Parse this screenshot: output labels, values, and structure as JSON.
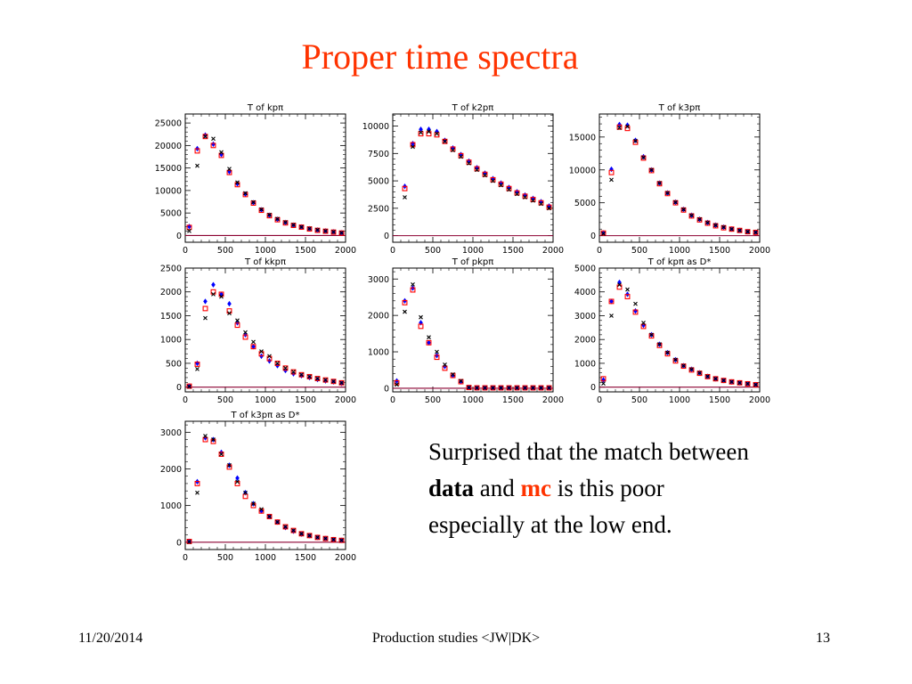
{
  "slide": {
    "title": "Proper time spectra",
    "remark": {
      "part1": "Surprised that the match between",
      "data_word": "data",
      "and_word": "and",
      "mc_word": "mc",
      "part2": "is this poor",
      "part3": "especially at the low end."
    },
    "footer": {
      "date": "11/20/2014",
      "center": "Production studies <JW|DK>",
      "page": "13"
    }
  },
  "colors": {
    "title": "#ff3300",
    "mc_word": "#ff3300",
    "series_blue": "#0000ff",
    "series_red": "#ff0000",
    "series_black": "#000000",
    "baseline": "#8b0030"
  },
  "chart_data": [
    {
      "type": "scatter",
      "title": "T of kpπ",
      "xlim": [
        0,
        2000
      ],
      "ylim": [
        -1500,
        27000
      ],
      "xticks": [
        0,
        500,
        1000,
        1500,
        2000
      ],
      "yticks": [
        0,
        5000,
        10000,
        15000,
        20000,
        25000
      ],
      "x": [
        50,
        150,
        250,
        350,
        450,
        550,
        650,
        750,
        850,
        950,
        1050,
        1150,
        1250,
        1350,
        1450,
        1550,
        1650,
        1750,
        1850,
        1950
      ],
      "series": [
        {
          "marker": "diamond",
          "color": "#0000ff",
          "values": [
            2000,
            19300,
            22300,
            20300,
            18000,
            14200,
            11500,
            9200,
            7300,
            5700,
            4500,
            3600,
            2900,
            2300,
            1900,
            1500,
            1200,
            1000,
            800,
            600
          ]
        },
        {
          "marker": "square",
          "color": "#ff0000",
          "values": [
            1800,
            18800,
            22000,
            20000,
            17800,
            14000,
            11300,
            9100,
            7200,
            5600,
            4400,
            3500,
            2800,
            2250,
            1850,
            1450,
            1150,
            950,
            750,
            550
          ]
        },
        {
          "marker": "x",
          "color": "#000000",
          "values": [
            1000,
            15500,
            22000,
            21500,
            18500,
            14800,
            11800,
            9400,
            7400,
            5800,
            4600,
            3700,
            2950,
            2350,
            1900,
            1550,
            1250,
            1000,
            800,
            600
          ]
        }
      ]
    },
    {
      "type": "scatter",
      "title": "T of k2pπ",
      "xlim": [
        0,
        2000
      ],
      "ylim": [
        -600,
        11100
      ],
      "xticks": [
        0,
        500,
        1000,
        1500,
        2000
      ],
      "yticks": [
        0,
        2500,
        5000,
        7500,
        10000
      ],
      "x": [
        150,
        250,
        350,
        450,
        550,
        650,
        750,
        850,
        950,
        1050,
        1150,
        1250,
        1350,
        1450,
        1550,
        1650,
        1750,
        1850,
        1950
      ],
      "series": [
        {
          "marker": "diamond",
          "color": "#0000ff",
          "values": [
            4500,
            8400,
            9700,
            9700,
            9500,
            8700,
            8000,
            7400,
            6800,
            6200,
            5700,
            5200,
            4800,
            4400,
            4000,
            3700,
            3400,
            3100,
            2700
          ]
        },
        {
          "marker": "square",
          "color": "#ff0000",
          "values": [
            4300,
            8300,
            9300,
            9300,
            9200,
            8600,
            7900,
            7300,
            6700,
            6100,
            5600,
            5100,
            4700,
            4300,
            3900,
            3600,
            3300,
            3000,
            2600
          ]
        },
        {
          "marker": "x",
          "color": "#000000",
          "values": [
            3500,
            8100,
            9400,
            9500,
            9300,
            8600,
            7800,
            7200,
            6600,
            6000,
            5500,
            5000,
            4600,
            4200,
            3800,
            3500,
            3200,
            2900,
            2500
          ]
        }
      ]
    },
    {
      "type": "scatter",
      "title": "T of k3pπ",
      "xlim": [
        0,
        2000
      ],
      "ylim": [
        -1000,
        18500
      ],
      "xticks": [
        0,
        500,
        1000,
        1500,
        2000
      ],
      "yticks": [
        0,
        5000,
        10000,
        15000
      ],
      "x": [
        50,
        150,
        250,
        350,
        450,
        550,
        650,
        750,
        850,
        950,
        1050,
        1150,
        1250,
        1350,
        1450,
        1550,
        1650,
        1750,
        1850,
        1950
      ],
      "series": [
        {
          "marker": "diamond",
          "color": "#0000ff",
          "values": [
            400,
            10100,
            16900,
            16800,
            14500,
            12000,
            10000,
            8000,
            6500,
            5100,
            4000,
            3100,
            2500,
            2000,
            1600,
            1300,
            1000,
            800,
            600,
            500
          ]
        },
        {
          "marker": "square",
          "color": "#ff0000",
          "values": [
            400,
            9600,
            16500,
            16300,
            14200,
            11800,
            9900,
            7900,
            6400,
            5000,
            3900,
            3000,
            2400,
            1900,
            1500,
            1200,
            1000,
            800,
            600,
            500
          ]
        },
        {
          "marker": "x",
          "color": "#000000",
          "values": [
            300,
            8500,
            16400,
            16600,
            14400,
            11900,
            10000,
            8000,
            6500,
            5100,
            4000,
            3100,
            2500,
            2000,
            1600,
            1300,
            1000,
            800,
            600,
            500
          ]
        }
      ]
    },
    {
      "type": "scatter",
      "title": "T of kkpπ",
      "xlim": [
        0,
        2000
      ],
      "ylim": [
        -100,
        2500
      ],
      "xticks": [
        0,
        500,
        1000,
        1500,
        2000
      ],
      "yticks": [
        0,
        500,
        1000,
        1500,
        2000,
        2500
      ],
      "x": [
        50,
        150,
        250,
        350,
        450,
        550,
        650,
        750,
        850,
        950,
        1050,
        1150,
        1250,
        1350,
        1450,
        1550,
        1650,
        1750,
        1850,
        1950
      ],
      "series": [
        {
          "marker": "diamond",
          "color": "#0000ff",
          "values": [
            20,
            500,
            1800,
            2150,
            1950,
            1750,
            1350,
            1100,
            850,
            650,
            550,
            450,
            350,
            280,
            240,
            200,
            160,
            130,
            110,
            80
          ]
        },
        {
          "marker": "square",
          "color": "#ff0000",
          "values": [
            20,
            480,
            1650,
            2000,
            1950,
            1600,
            1300,
            1050,
            850,
            700,
            600,
            500,
            400,
            320,
            260,
            220,
            180,
            150,
            120,
            90
          ]
        },
        {
          "marker": "x",
          "color": "#000000",
          "values": [
            10,
            380,
            1450,
            1950,
            1900,
            1550,
            1400,
            1150,
            950,
            750,
            650,
            500,
            400,
            320,
            260,
            220,
            180,
            150,
            120,
            90
          ]
        }
      ]
    },
    {
      "type": "scatter",
      "title": "T of pkpπ",
      "xlim": [
        0,
        2000
      ],
      "ylim": [
        -100,
        3300
      ],
      "xticks": [
        0,
        500,
        1000,
        1500,
        2000
      ],
      "yticks": [
        0,
        1000,
        2000,
        3000
      ],
      "x": [
        50,
        150,
        250,
        350,
        450,
        550,
        650,
        750,
        850,
        950,
        1050,
        1150,
        1250,
        1350,
        1450,
        1550,
        1650,
        1750,
        1850,
        1950
      ],
      "series": [
        {
          "marker": "diamond",
          "color": "#0000ff",
          "values": [
            200,
            2400,
            2750,
            1800,
            1250,
            900,
            600,
            350,
            180,
            20,
            10,
            10,
            10,
            10,
            10,
            10,
            10,
            10,
            10,
            10
          ]
        },
        {
          "marker": "square",
          "color": "#ff0000",
          "values": [
            150,
            2350,
            2700,
            1700,
            1250,
            850,
            550,
            350,
            180,
            20,
            10,
            10,
            10,
            10,
            10,
            10,
            10,
            10,
            10,
            10
          ]
        },
        {
          "marker": "x",
          "color": "#000000",
          "values": [
            100,
            2100,
            2850,
            1950,
            1400,
            1000,
            650,
            380,
            200,
            20,
            10,
            10,
            10,
            10,
            10,
            10,
            10,
            10,
            10,
            10
          ]
        }
      ]
    },
    {
      "type": "scatter",
      "title": "T of kpπ as D*",
      "xlim": [
        0,
        2000
      ],
      "ylim": [
        -200,
        5000
      ],
      "xticks": [
        0,
        500,
        1000,
        1500,
        2000
      ],
      "yticks": [
        0,
        1000,
        2000,
        3000,
        4000,
        5000
      ],
      "x": [
        50,
        150,
        250,
        350,
        450,
        550,
        650,
        750,
        850,
        950,
        1050,
        1150,
        1250,
        1350,
        1450,
        1550,
        1650,
        1750,
        1850,
        1950
      ],
      "series": [
        {
          "marker": "diamond",
          "color": "#0000ff",
          "values": [
            300,
            3600,
            4400,
            3900,
            3200,
            2600,
            2200,
            1800,
            1450,
            1150,
            900,
            750,
            600,
            450,
            350,
            280,
            220,
            180,
            140,
            100
          ]
        },
        {
          "marker": "square",
          "color": "#ff0000",
          "values": [
            350,
            3600,
            4200,
            3800,
            3150,
            2550,
            2150,
            1750,
            1400,
            1100,
            880,
            720,
            580,
            440,
            350,
            280,
            220,
            180,
            140,
            100
          ]
        },
        {
          "marker": "x",
          "color": "#000000",
          "values": [
            150,
            3000,
            4300,
            4100,
            3500,
            2700,
            2200,
            1800,
            1450,
            1150,
            900,
            750,
            600,
            450,
            350,
            280,
            220,
            180,
            140,
            100
          ]
        }
      ]
    },
    {
      "type": "scatter",
      "title": "T of k3pπ as D*",
      "xlim": [
        0,
        2000
      ],
      "ylim": [
        -200,
        3300
      ],
      "xticks": [
        0,
        500,
        1000,
        1500,
        2000
      ],
      "yticks": [
        0,
        1000,
        2000,
        3000
      ],
      "x": [
        50,
        150,
        250,
        350,
        450,
        550,
        650,
        750,
        850,
        950,
        1050,
        1150,
        1250,
        1350,
        1450,
        1550,
        1650,
        1750,
        1850,
        1950
      ],
      "series": [
        {
          "marker": "diamond",
          "color": "#0000ff",
          "values": [
            20,
            1650,
            2850,
            2800,
            2450,
            2100,
            1750,
            1350,
            1050,
            850,
            700,
            550,
            400,
            300,
            220,
            180,
            130,
            100,
            70,
            50
          ]
        },
        {
          "marker": "square",
          "color": "#ff0000",
          "values": [
            20,
            1600,
            2800,
            2750,
            2400,
            2050,
            1600,
            1250,
            1000,
            850,
            700,
            550,
            420,
            320,
            230,
            180,
            130,
            100,
            70,
            50
          ]
        },
        {
          "marker": "x",
          "color": "#000000",
          "values": [
            10,
            1350,
            2900,
            2800,
            2400,
            2100,
            1650,
            1350,
            1050,
            900,
            700,
            550,
            420,
            320,
            230,
            180,
            130,
            100,
            70,
            50
          ]
        }
      ]
    }
  ]
}
